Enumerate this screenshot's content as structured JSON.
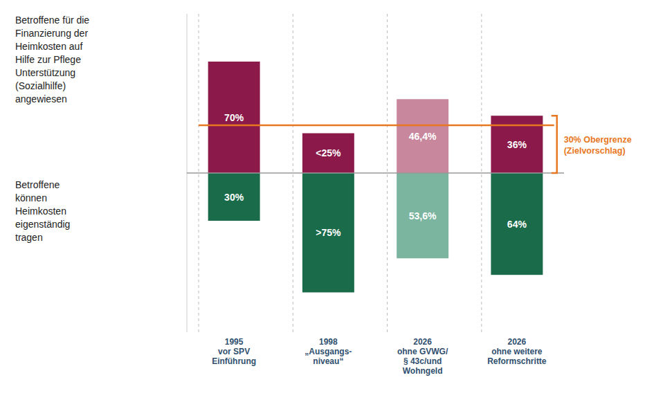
{
  "chart_data": {
    "type": "diverging_bar",
    "categories": [
      "1995\nvor SPV\nEinführung",
      "1998\n„Ausgangs-\nniveau“",
      "2026\nohne GVWG/\n§ 43c/und\nWohngeld",
      "2026\nohne weitere\nReformschritte"
    ],
    "series": [
      {
        "name": "Betroffene für die\nFinanzierung der\nHeimkosten auf\nHilfe zur Pflege\nUnterstützung\n(Sozialhilfe)\nangewiesen",
        "values": [
          70,
          25,
          46.4,
          36
        ],
        "value_labels": [
          "70%",
          "<25%",
          "46,4%",
          "36%"
        ],
        "colors": [
          "#8B1A4A",
          "#8B1A4A",
          "#C9879E",
          "#8B1A4A"
        ]
      },
      {
        "name": "Betroffene\nkönnen\nHeimkosten\neigenständig\ntragen",
        "values": [
          30,
          75,
          53.6,
          64
        ],
        "value_labels": [
          "30%",
          ">75%",
          "53,6%",
          "64%"
        ],
        "colors": [
          "#1A6B4A",
          "#1A6B4A",
          "#7BB5A0",
          "#1A6B4A"
        ]
      }
    ],
    "ylim": [
      -100,
      100
    ],
    "yticks": [
      0
    ],
    "tick_labels": false,
    "data_labels": true,
    "grid": false,
    "annotations": [
      {
        "text": "30% Obergrenze\n(Zielvorschlag)",
        "value": 30,
        "color": "#E87722"
      }
    ]
  }
}
